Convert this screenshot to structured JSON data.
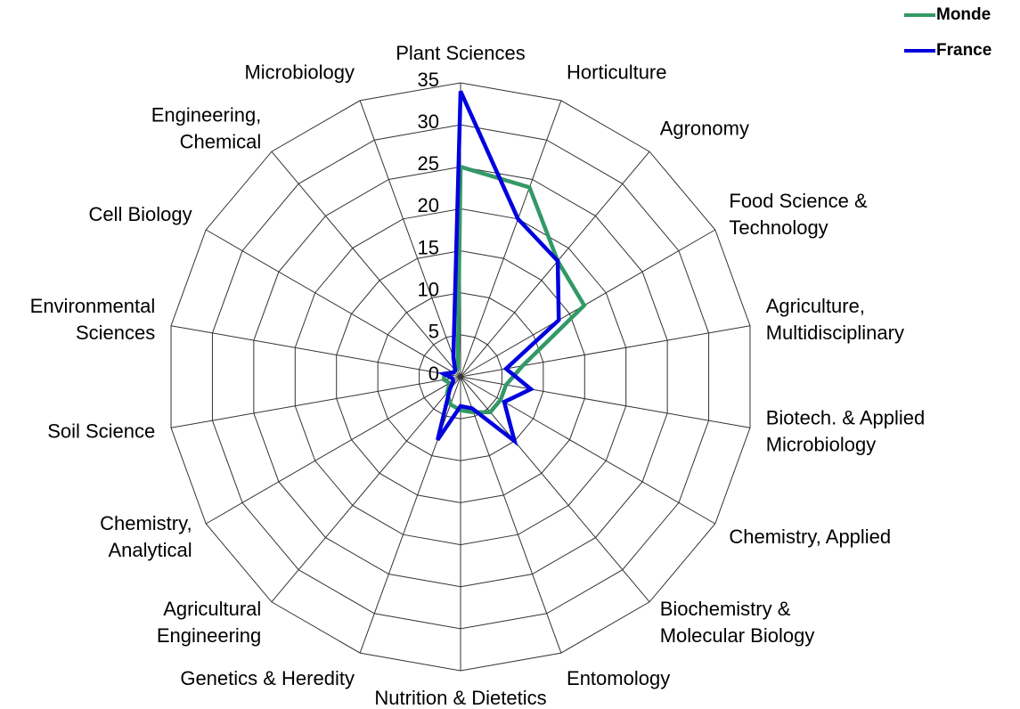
{
  "chart_data": {
    "type": "radar",
    "categories": [
      [
        "Plant Sciences"
      ],
      [
        "Horticulture"
      ],
      [
        "Agronomy"
      ],
      [
        "Food Science &",
        "Technology"
      ],
      [
        "Agriculture,",
        "Multidisciplinary"
      ],
      [
        "Biotech. & Applied",
        "Microbiology"
      ],
      [
        "Chemistry, Applied"
      ],
      [
        "Biochemistry &",
        "Molecular Biology"
      ],
      [
        "Entomology"
      ],
      [
        "Nutrition & Dietetics"
      ],
      [
        "Genetics & Heredity"
      ],
      [
        "Agricultural",
        "Engineering"
      ],
      [
        "Chemistry,",
        "Analytical"
      ],
      [
        "Soil Science"
      ],
      [
        "Environmental",
        "Sciences"
      ],
      [
        "Cell Biology"
      ],
      [
        "Engineering,",
        "Chemical"
      ],
      [
        "Microbiology"
      ]
    ],
    "series": [
      {
        "name": "Monde",
        "color": "#339966",
        "values": [
          25,
          24,
          18,
          17,
          7.5,
          5.5,
          5.5,
          5.5,
          4.5,
          4,
          3.5,
          2.5,
          1.5,
          2,
          2,
          1,
          1,
          1
        ]
      },
      {
        "name": "France",
        "color": "#0000dd",
        "values": [
          34,
          20,
          18,
          13.5,
          5.5,
          8.5,
          6,
          10,
          4,
          3.5,
          8,
          2,
          1,
          1,
          2,
          1,
          1,
          2.5
        ]
      }
    ],
    "ylim": [
      0,
      35
    ],
    "yticks": [
      0,
      5,
      10,
      15,
      20,
      25,
      30,
      35
    ],
    "grid": true,
    "legend": "top-right"
  }
}
